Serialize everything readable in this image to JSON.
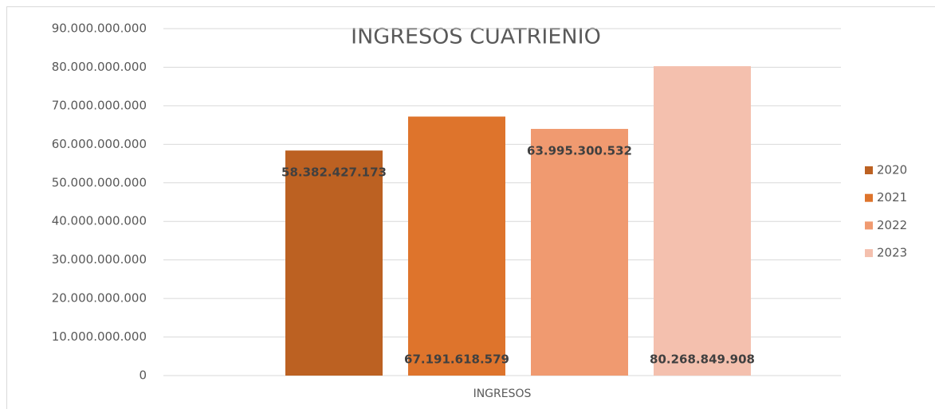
{
  "chart_data": {
    "type": "bar",
    "title": "INGRESOS CUATRIENIO",
    "categories": [
      "INGRESOS"
    ],
    "series": [
      {
        "name": "2020",
        "color": "#bc6122",
        "values": [
          58382427173
        ],
        "value_labels": [
          "58.382.427.173"
        ]
      },
      {
        "name": "2021",
        "color": "#de742c",
        "values": [
          67191618579
        ],
        "value_labels": [
          "67.191.618.579"
        ]
      },
      {
        "name": "2022",
        "color": "#f09a70",
        "values": [
          63995300532
        ],
        "value_labels": [
          "63.995.300.532"
        ]
      },
      {
        "name": "2023",
        "color": "#f4c0ae",
        "values": [
          80268849908
        ],
        "value_labels": [
          "80.268.849.908"
        ]
      }
    ],
    "ylim": [
      0,
      90000000000
    ],
    "yticks": [
      0,
      {
        "value": 10000000000,
        "label": "10.000.000.000"
      },
      {
        "value": 20000000000,
        "label": "20.000.000.000"
      },
      {
        "value": 30000000000,
        "label": "30.000.000.000"
      },
      {
        "value": 40000000000,
        "label": "40.000.000.000"
      },
      {
        "value": 50000000000,
        "label": "50.000.000.000"
      },
      {
        "value": 60000000000,
        "label": "60.000.000.000"
      },
      {
        "value": 70000000000,
        "label": "70.000.000.000"
      },
      {
        "value": 80000000000,
        "label": "80.000.000.000"
      },
      {
        "value": 90000000000,
        "label": "90.000.000.000"
      }
    ],
    "grid": true,
    "legend": "right"
  }
}
